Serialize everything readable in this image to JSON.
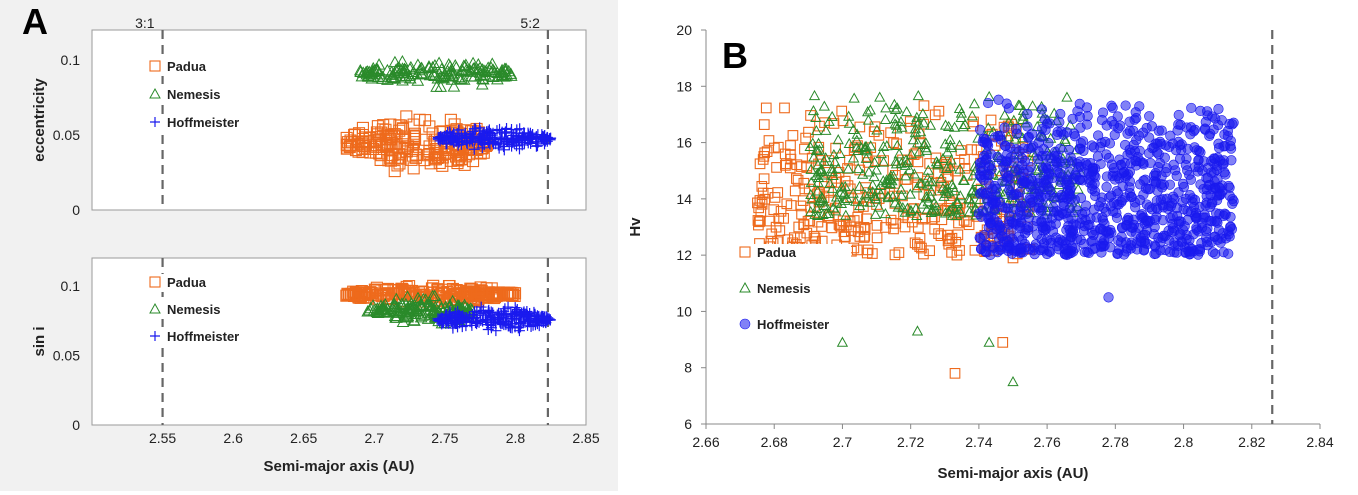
{
  "colors": {
    "padua": "#ee6a1c",
    "nemesis": "#2a8a2a",
    "hoffmeister": "#1a1aee"
  },
  "chart_data": [
    {
      "panel": "A",
      "type": "scatter",
      "ylabel": "eccentricity",
      "xlim": [
        2.5,
        2.85
      ],
      "ylim": [
        0,
        0.12
      ],
      "yticks": [
        "0",
        "0.05",
        "0.1"
      ],
      "resonances": [
        {
          "label": "3:1",
          "x": 2.55
        },
        {
          "label": "5:2",
          "x": 2.823
        }
      ],
      "legend": [
        "Padua",
        "Nemesis",
        "Hoffmeister"
      ],
      "series": [
        {
          "name": "Padua",
          "marker": "square",
          "cluster": {
            "x": [
              2.68,
              2.78
            ],
            "y": [
              0.025,
              0.063
            ]
          }
        },
        {
          "name": "Nemesis",
          "marker": "triangle",
          "cluster": {
            "x": [
              2.69,
              2.8
            ],
            "y": [
              0.082,
              0.1
            ]
          }
        },
        {
          "name": "Hoffmeister",
          "marker": "plus",
          "cluster": {
            "x": [
              2.745,
              2.825
            ],
            "y": [
              0.04,
              0.055
            ]
          }
        }
      ]
    },
    {
      "panel": "A",
      "type": "scatter",
      "xlabel": "Semi-major axis (AU)",
      "ylabel": "sin i",
      "xlim": [
        2.5,
        2.85
      ],
      "ylim": [
        0,
        0.12
      ],
      "xticks": [
        "2.55",
        "2.6",
        "2.65",
        "2.7",
        "2.75",
        "2.8",
        "2.85"
      ],
      "yticks": [
        "0",
        "0.05",
        "0.1"
      ],
      "resonances": [
        {
          "label": "",
          "x": 2.55
        },
        {
          "label": "",
          "x": 2.823
        }
      ],
      "legend": [
        "Padua",
        "Nemesis",
        "Hoffmeister"
      ],
      "series": [
        {
          "name": "Padua",
          "marker": "square",
          "cluster": {
            "x": [
              2.68,
              2.8
            ],
            "y": [
              0.088,
              0.1
            ]
          }
        },
        {
          "name": "Nemesis",
          "marker": "triangle",
          "cluster": {
            "x": [
              2.695,
              2.77
            ],
            "y": [
              0.072,
              0.093
            ]
          }
        },
        {
          "name": "Hoffmeister",
          "marker": "plus",
          "cluster": {
            "x": [
              2.745,
              2.825
            ],
            "y": [
              0.066,
              0.085
            ]
          }
        }
      ]
    },
    {
      "panel": "B",
      "type": "scatter",
      "xlabel": "Semi-major axis (AU)",
      "ylabel": "Hv",
      "xlim": [
        2.66,
        2.84
      ],
      "ylim": [
        6,
        20
      ],
      "xticks": [
        "2.66",
        "2.68",
        "2.7",
        "2.72",
        "2.74",
        "2.76",
        "2.78",
        "2.8",
        "2.82",
        "2.84"
      ],
      "yticks": [
        "6",
        "8",
        "10",
        "12",
        "14",
        "16",
        "18",
        "20"
      ],
      "resonances": [
        {
          "label": "",
          "x": 2.826
        }
      ],
      "legend": [
        "Padua",
        "Nemesis",
        "Hoffmeister"
      ],
      "series": [
        {
          "name": "Padua",
          "marker": "square",
          "cluster": {
            "x": [
              2.675,
              2.755
            ],
            "y": [
              12,
              17.4
            ]
          },
          "outliers": [
            {
              "x": 2.733,
              "y": 7.8
            },
            {
              "x": 2.747,
              "y": 8.9
            },
            {
              "x": 2.732,
              "y": 12.1
            },
            {
              "x": 2.75,
              "y": 11.9
            }
          ]
        },
        {
          "name": "Nemesis",
          "marker": "triangle",
          "cluster": {
            "x": [
              2.69,
              2.77
            ],
            "y": [
              13.4,
              17.8
            ]
          },
          "outliers": [
            {
              "x": 2.7,
              "y": 8.9
            },
            {
              "x": 2.722,
              "y": 9.3
            },
            {
              "x": 2.743,
              "y": 8.9
            },
            {
              "x": 2.75,
              "y": 7.5
            }
          ]
        },
        {
          "name": "Hoffmeister",
          "marker": "circle",
          "cluster": {
            "x": [
              2.74,
              2.815
            ],
            "y": [
              12,
              17.6
            ]
          },
          "outliers": [
            {
              "x": 2.778,
              "y": 10.5
            }
          ]
        }
      ]
    }
  ],
  "panels": {
    "a_label": "A",
    "b_label": "B"
  }
}
